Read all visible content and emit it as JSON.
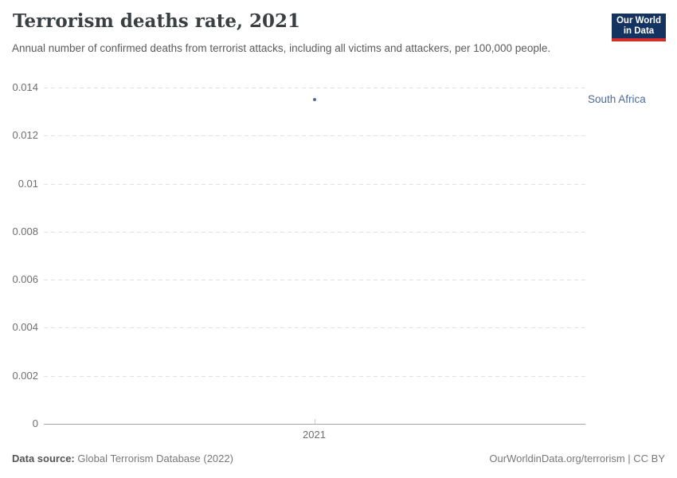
{
  "header": {
    "title": "Terrorism deaths rate, 2021",
    "subtitle": "Annual number of confirmed deaths from terrorist attacks, including all victims and attackers, per 100,000 people.",
    "logo": {
      "line1": "Our World",
      "line2": "in Data",
      "bg_color": "#153360",
      "accent_color": "#d42b2b"
    }
  },
  "chart_data": {
    "type": "scatter",
    "title": "Terrorism deaths rate, 2021",
    "x": [
      2021
    ],
    "series": [
      {
        "name": "South Africa",
        "values": [
          0.0135
        ],
        "color": "#4c6a9c"
      }
    ],
    "xlabel": "",
    "ylabel": "",
    "ylim": [
      0,
      0.014
    ],
    "yticks": [
      0,
      0.002,
      0.004,
      0.006,
      0.008,
      0.01,
      0.012,
      0.014
    ],
    "ytick_labels": [
      "0",
      "0.002",
      "0.004",
      "0.006",
      "0.008",
      "0.01",
      "0.012",
      "0.014"
    ],
    "xtick_labels": [
      "2021"
    ],
    "grid": "horizontal-dashed",
    "legend_position": "right-of-plot-entity-label"
  },
  "footer": {
    "source_label": "Data source:",
    "source_value": "Global Terrorism Database (2022)",
    "credit": "OurWorldinData.org/terrorism | CC BY"
  }
}
